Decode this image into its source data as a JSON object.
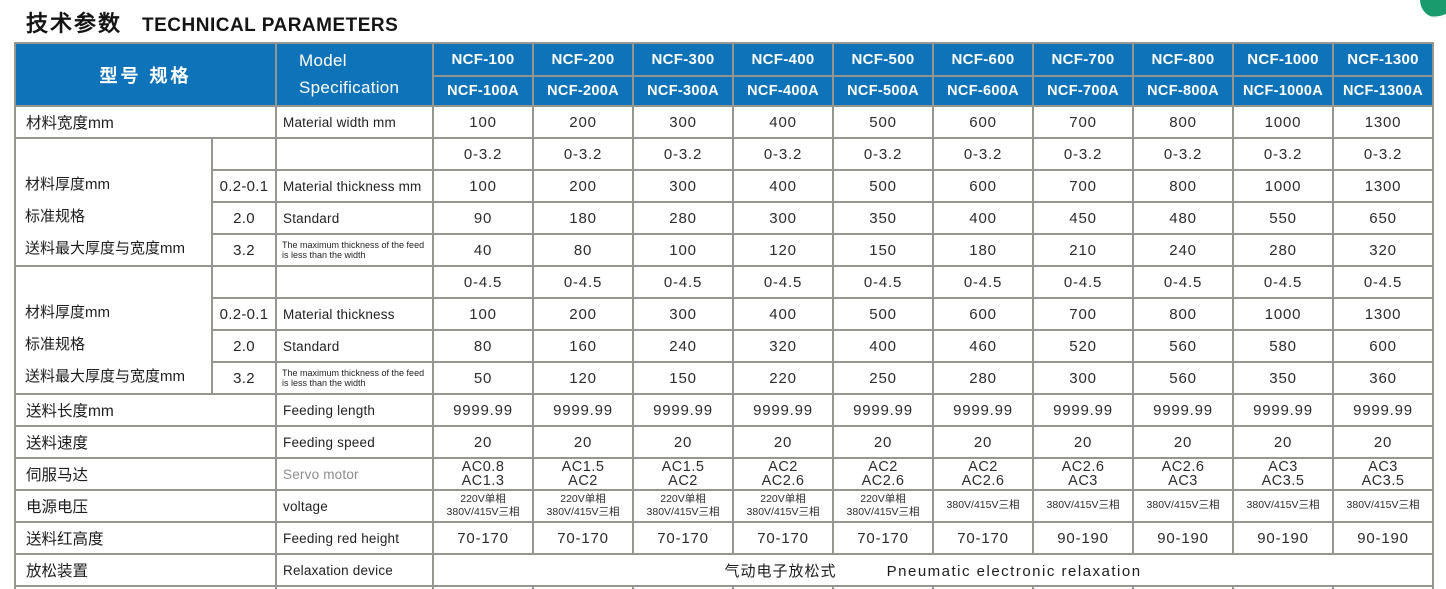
{
  "colors": {
    "accent_blue": "#0e73b9",
    "grid_gray": "#97958f",
    "badge_green": "#1a9b6e",
    "text_dark": "#272727",
    "text_gray": "#8c8c8c"
  },
  "title": {
    "cn": "技术参数",
    "en": "TECHNICAL PARAMETERS"
  },
  "header": {
    "model_label_cn": "型号 规格",
    "model_label_en_line1": "Model",
    "model_label_en_line2": "Specification",
    "models": [
      "NCF-100",
      "NCF-200",
      "NCF-300",
      "NCF-400",
      "NCF-500",
      "NCF-600",
      "NCF-700",
      "NCF-800",
      "NCF-1000",
      "NCF-1300"
    ],
    "models_a": [
      "NCF-100A",
      "NCF-200A",
      "NCF-300A",
      "NCF-400A",
      "NCF-500A",
      "NCF-600A",
      "NCF-700A",
      "NCF-800A",
      "NCF-1000A",
      "NCF-1300A"
    ]
  },
  "rows": {
    "material_width": {
      "label_cn": "材料宽度mm",
      "label_en": "Material width mm",
      "values": [
        "100",
        "200",
        "300",
        "400",
        "500",
        "600",
        "700",
        "800",
        "1000",
        "1300"
      ]
    },
    "group1": {
      "side_labels": [
        "材料厚度mm",
        "标准规格",
        "送料最大厚度与宽度mm"
      ],
      "range_row": {
        "values": [
          "0-3.2",
          "0-3.2",
          "0-3.2",
          "0-3.2",
          "0-3.2",
          "0-3.2",
          "0-3.2",
          "0-3.2",
          "0-3.2",
          "0-3.2"
        ]
      },
      "thickness": {
        "sub": "0.2-0.1",
        "label_en": "Material thickness mm",
        "values": [
          "100",
          "200",
          "300",
          "400",
          "500",
          "600",
          "700",
          "800",
          "1000",
          "1300"
        ]
      },
      "standard": {
        "sub": "2.0",
        "label_en": "Standard",
        "values": [
          "90",
          "180",
          "280",
          "300",
          "350",
          "400",
          "450",
          "480",
          "550",
          "650"
        ]
      },
      "max": {
        "sub": "3.2",
        "label_en": "The maximum thickness of the feed is less than the width",
        "values": [
          "40",
          "80",
          "100",
          "120",
          "150",
          "180",
          "210",
          "240",
          "280",
          "320"
        ]
      }
    },
    "group2": {
      "side_labels": [
        "材料厚度mm",
        "标准规格",
        "送料最大厚度与宽度mm"
      ],
      "range_row": {
        "values": [
          "0-4.5",
          "0-4.5",
          "0-4.5",
          "0-4.5",
          "0-4.5",
          "0-4.5",
          "0-4.5",
          "0-4.5",
          "0-4.5",
          "0-4.5"
        ]
      },
      "thickness": {
        "sub": "0.2-0.1",
        "label_en": "Material thickness",
        "values": [
          "100",
          "200",
          "300",
          "400",
          "500",
          "600",
          "700",
          "800",
          "1000",
          "1300"
        ]
      },
      "standard": {
        "sub": "2.0",
        "label_en": "Standard",
        "values": [
          "80",
          "160",
          "240",
          "320",
          "400",
          "460",
          "520",
          "560",
          "580",
          "600"
        ]
      },
      "max": {
        "sub": "3.2",
        "label_en": "The maximum thickness of the feed is less than the width",
        "values": [
          "50",
          "120",
          "150",
          "220",
          "250",
          "280",
          "300",
          "560",
          "350",
          "360"
        ]
      }
    },
    "feeding_length": {
      "label_cn": "送料长度mm",
      "label_en": "Feeding length",
      "values": [
        "9999.99",
        "9999.99",
        "9999.99",
        "9999.99",
        "9999.99",
        "9999.99",
        "9999.99",
        "9999.99",
        "9999.99",
        "9999.99"
      ]
    },
    "feeding_speed": {
      "label_cn": "送料速度",
      "label_en": "Feeding speed",
      "values": [
        "20",
        "20",
        "20",
        "20",
        "20",
        "20",
        "20",
        "20",
        "20",
        "20"
      ]
    },
    "servo_motor": {
      "label_cn": "伺服马达",
      "label_en": "Servo motor",
      "values": [
        [
          "AC0.8",
          "AC1.3"
        ],
        [
          "AC1.5",
          "AC2"
        ],
        [
          "AC1.5",
          "AC2"
        ],
        [
          "AC2",
          "AC2.6"
        ],
        [
          "AC2",
          "AC2.6"
        ],
        [
          "AC2",
          "AC2.6"
        ],
        [
          "AC2.6",
          "AC3"
        ],
        [
          "AC2.6",
          "AC3"
        ],
        [
          "AC3",
          "AC3.5"
        ],
        [
          "AC3",
          "AC3.5"
        ]
      ]
    },
    "voltage": {
      "label_cn": "电源电压",
      "label_en": "voltage",
      "values": [
        [
          "220V单相",
          "380V/415V三相"
        ],
        [
          "220V单相",
          "380V/415V三相"
        ],
        [
          "220V单相",
          "380V/415V三相"
        ],
        [
          "220V单相",
          "380V/415V三相"
        ],
        [
          "220V单相",
          "380V/415V三相"
        ],
        "380V/415V三相",
        "380V/415V三相",
        "380V/415V三相",
        "380V/415V三相",
        "380V/415V三相"
      ]
    },
    "red_height": {
      "label_cn": "送料红高度",
      "label_en": "Feeding red height",
      "values": [
        "70-170",
        "70-170",
        "70-170",
        "70-170",
        "70-170",
        "70-170",
        "90-190",
        "90-190",
        "90-190",
        "90-190"
      ]
    },
    "relaxation": {
      "label_cn": "放松装置",
      "label_en": "Relaxation device",
      "value_cn": "气动电子放松式",
      "value_en": "Pneumatic electronic relaxation"
    }
  }
}
